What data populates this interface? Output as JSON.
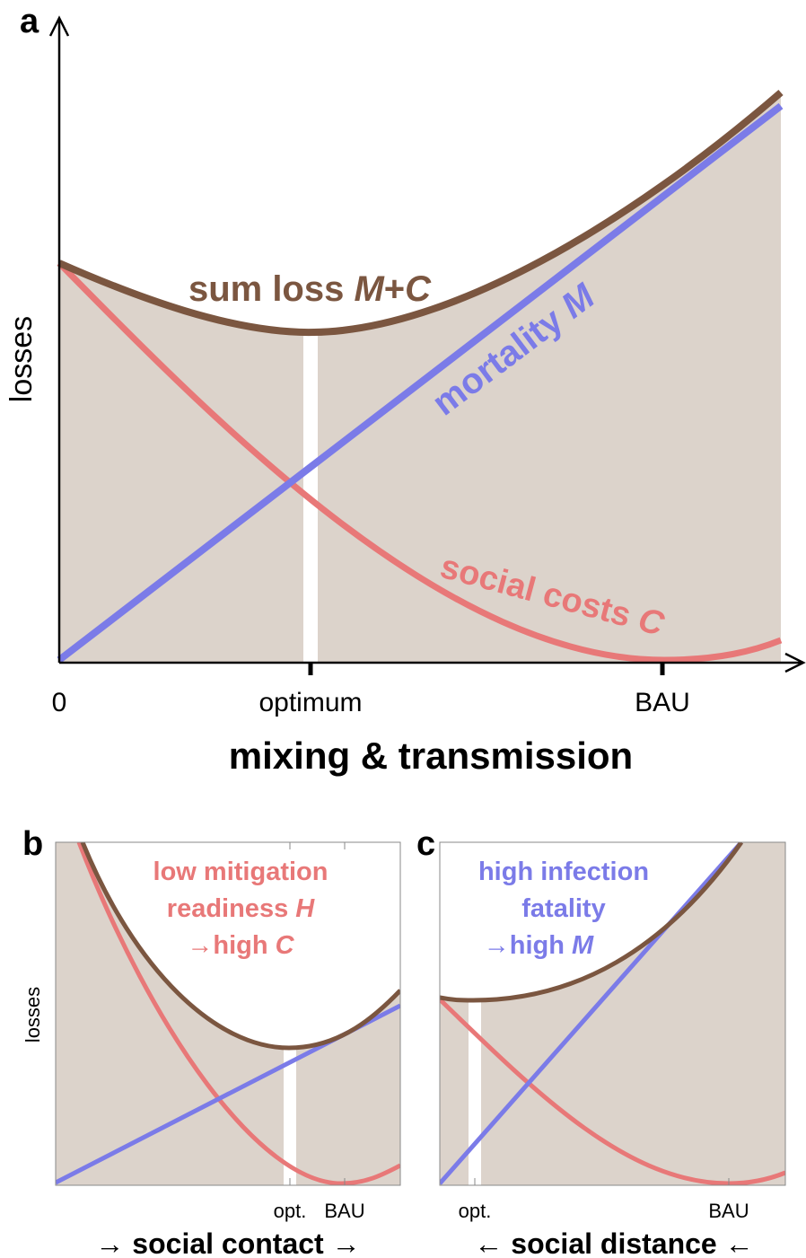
{
  "panel_a": {
    "label": "a",
    "y_axis": "losses",
    "x_axis": "mixing & transmission",
    "ticks": [
      "0",
      "optimum",
      "BAU"
    ],
    "sum_loss": [
      "sum loss ",
      "M",
      "+",
      "C"
    ],
    "mortality": [
      "mortality ",
      "M"
    ],
    "social_costs": [
      "social costs ",
      "C"
    ]
  },
  "panel_b": {
    "label": "b",
    "y_axis": "losses",
    "x_axis": "→ social contact →",
    "ticks": [
      "opt.",
      "BAU"
    ],
    "note": [
      [
        "low mitigation"
      ],
      [
        "readiness ",
        "H"
      ],
      [
        "→high ",
        "C"
      ]
    ]
  },
  "panel_c": {
    "label": "c",
    "x_axis": "← social distance ←",
    "ticks": [
      "opt.",
      "BAU"
    ],
    "note": [
      [
        "high infection"
      ],
      [
        "fatality"
      ],
      [
        "→high ",
        "M"
      ]
    ]
  }
}
